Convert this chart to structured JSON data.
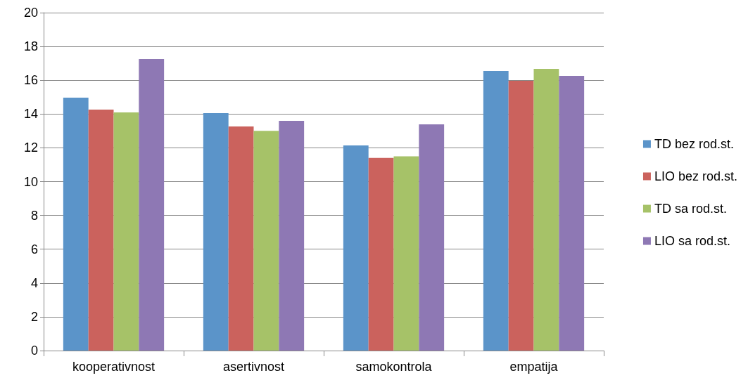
{
  "chart_data": {
    "type": "bar",
    "categories": [
      "kooperativnost",
      "asertivnost",
      "samokontrola",
      "empatija"
    ],
    "series": [
      {
        "name": "TD bez rod.st.",
        "color": "#5b94c9",
        "values": [
          14.97,
          14.05,
          12.14,
          16.55
        ]
      },
      {
        "name": "LIO bez rod.st.",
        "color": "#cb625d",
        "values": [
          14.26,
          13.26,
          11.4,
          15.97
        ]
      },
      {
        "name": "TD sa rod.st.",
        "color": "#a6c268",
        "values": [
          14.1,
          13.0,
          11.5,
          16.67
        ]
      },
      {
        "name": "LIO sa rod.st.",
        "color": "#8e78b4",
        "values": [
          17.26,
          13.6,
          13.39,
          16.26
        ]
      }
    ],
    "ylim": [
      0,
      20
    ],
    "yticks": [
      0,
      2,
      4,
      6,
      8,
      10,
      12,
      14,
      16,
      18,
      20
    ],
    "grid": "y",
    "legend": "right"
  }
}
